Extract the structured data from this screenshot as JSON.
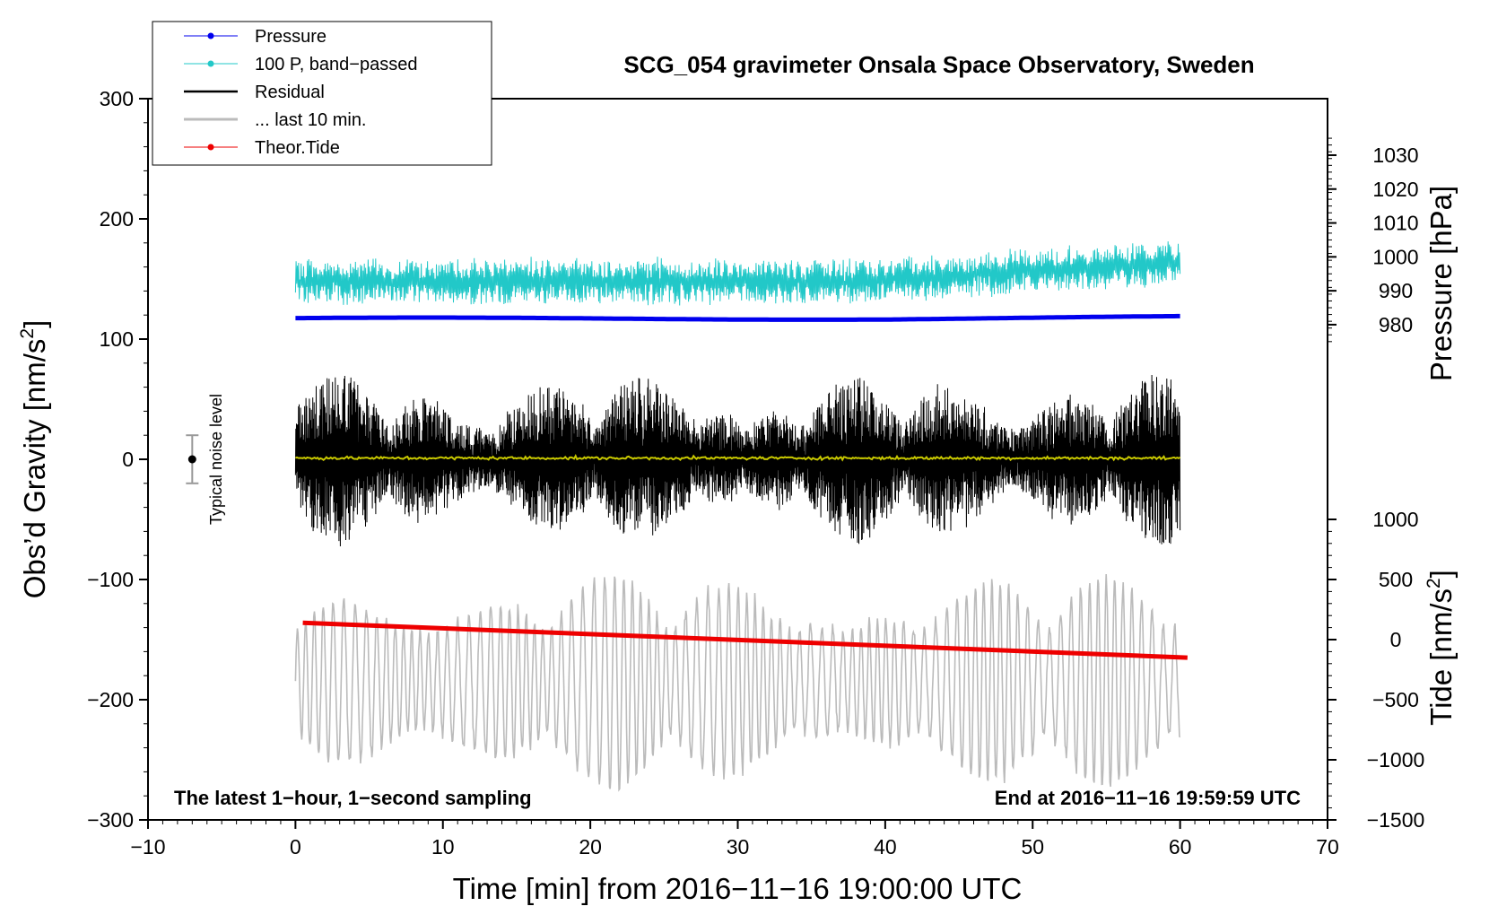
{
  "chart_data": {
    "type": "line",
    "title": "SCG_054 gravimeter Onsala Space Observatory, Sweden",
    "xlabel": "Time [min] from 2016−11−16 19:00:00 UTC",
    "ylabel_left": "Obs’d Gravity [nm/s",
    "ylabel_left_sup": "2",
    "ylabel_left_tail": "]",
    "ylabel_right_pressure": "Pressure [hPa]",
    "ylabel_right_tide": "Tide [nm/s",
    "ylabel_right_tide_sup": "2",
    "ylabel_right_tide_tail": "]",
    "xlim": [
      -10,
      70
    ],
    "ylim": [
      -300,
      300
    ],
    "x_ticks": [
      {
        "value": -10,
        "label": "−10"
      },
      {
        "value": 0,
        "label": "0"
      },
      {
        "value": 10,
        "label": "10"
      },
      {
        "value": 20,
        "label": "20"
      },
      {
        "value": 30,
        "label": "30"
      },
      {
        "value": 40,
        "label": "40"
      },
      {
        "value": 50,
        "label": "50"
      },
      {
        "value": 60,
        "label": "60"
      },
      {
        "value": 70,
        "label": "70"
      }
    ],
    "y_ticks_left": [
      {
        "value": 300,
        "label": "300"
      },
      {
        "value": 200,
        "label": "200"
      },
      {
        "value": 100,
        "label": "100"
      },
      {
        "value": 0,
        "label": "0"
      },
      {
        "value": -100,
        "label": "−100"
      },
      {
        "value": -200,
        "label": "−200"
      },
      {
        "value": -300,
        "label": "−300"
      }
    ],
    "pressure_axis": {
      "map": {
        "p1": 1030,
        "y1": 253,
        "p2": 980,
        "y2": 112
      },
      "ticks": [
        {
          "value": 1030,
          "label": "1030"
        },
        {
          "value": 1020,
          "label": "1020"
        },
        {
          "value": 1010,
          "label": "1010"
        },
        {
          "value": 1000,
          "label": "1000"
        },
        {
          "value": 990,
          "label": "990"
        },
        {
          "value": 980,
          "label": "980"
        }
      ]
    },
    "tide_axis": {
      "map": {
        "t1": 1000,
        "y1": -50,
        "t2": -1500,
        "y2": -300
      },
      "ticks": [
        {
          "value": 1000,
          "label": "1000"
        },
        {
          "value": 500,
          "label": "500"
        },
        {
          "value": 0,
          "label": "0"
        },
        {
          "value": -500,
          "label": "−500"
        },
        {
          "value": -1000,
          "label": "−1000"
        },
        {
          "value": -1500,
          "label": "−1500"
        }
      ]
    },
    "annotations": {
      "bottom_left": "The latest 1−hour, 1−second sampling",
      "bottom_right": "End at 2016−11−16 19:59:59 UTC",
      "noise": "Typical noise level"
    },
    "noise_bar": {
      "x": -7,
      "center": 0,
      "half_range": 20
    },
    "series": [
      {
        "name": "Pressure",
        "color": "#0000ee",
        "style": "line-dots",
        "x_range": [
          0,
          60
        ],
        "level": 117,
        "amplitude": 1.5
      },
      {
        "name": "100 P, band−passed",
        "color": "#22c8c8",
        "style": "line-dots",
        "x_range": [
          0,
          60
        ],
        "level": 148,
        "amplitude": 30
      },
      {
        "name": "Residual",
        "color": "#000000",
        "style": "line",
        "x_range": [
          0,
          60
        ],
        "level": 0,
        "amplitude": 100
      },
      {
        "name": "... last 10 min.",
        "color": "#bbbbbb",
        "style": "line",
        "x_range": [
          0,
          60
        ],
        "level": -185,
        "amplitude": 90
      },
      {
        "name": "Theor.Tide",
        "color": "#ee0000",
        "style": "line-dots",
        "x_range": [
          0.5,
          60.5
        ],
        "start": -136,
        "end": -165
      }
    ],
    "smoothed_series": {
      "name": "smoothed residual",
      "color": "#c8c800",
      "x_range": [
        0,
        60
      ],
      "level": 1
    }
  }
}
